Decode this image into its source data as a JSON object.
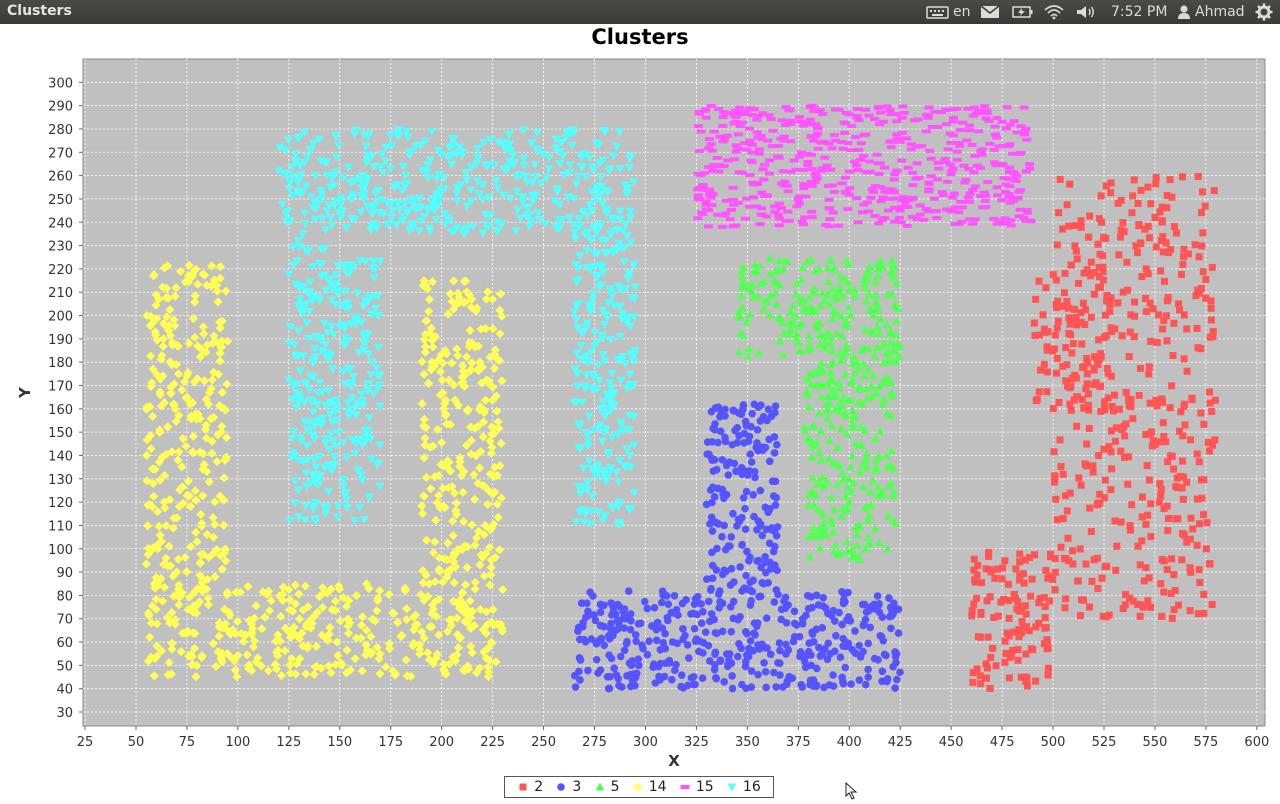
{
  "window": {
    "title": "Clusters"
  },
  "tray": {
    "language": "en",
    "time": "7:52 PM",
    "user": "Ahmad",
    "icons": [
      "keyboard-icon",
      "mail-icon",
      "battery-icon",
      "wifi-icon",
      "volume-icon",
      "user-icon",
      "gear-icon"
    ]
  },
  "chart_data": {
    "type": "scatter",
    "title": "Clusters",
    "xlabel": "X",
    "ylabel": "Y",
    "xlim": [
      24,
      604
    ],
    "ylim": [
      24,
      310
    ],
    "xticks": [
      25,
      50,
      75,
      100,
      125,
      150,
      175,
      200,
      225,
      250,
      275,
      300,
      325,
      350,
      375,
      400,
      425,
      450,
      475,
      500,
      525,
      550,
      575,
      600
    ],
    "yticks": [
      30,
      40,
      50,
      60,
      70,
      80,
      90,
      100,
      110,
      120,
      130,
      140,
      150,
      160,
      170,
      180,
      190,
      200,
      210,
      220,
      230,
      240,
      250,
      260,
      270,
      280,
      290,
      300
    ],
    "grid": true,
    "background": "#c0c0c0",
    "legend_position": "bottom",
    "series": [
      {
        "name": "2",
        "color": "#ff5555",
        "marker": "square",
        "regions": [
          {
            "x": [
              500,
              580
            ],
            "y": [
              70,
              260
            ],
            "n": 420
          },
          {
            "x": [
              460,
              500
            ],
            "y": [
              40,
              100
            ],
            "n": 120
          },
          {
            "x": [
              490,
              530
            ],
            "y": [
              160,
              220
            ],
            "n": 80
          }
        ]
      },
      {
        "name": "3",
        "color": "#5555ff",
        "marker": "circle",
        "regions": [
          {
            "x": [
              265,
              425
            ],
            "y": [
              40,
              82
            ],
            "n": 420
          },
          {
            "x": [
              330,
              365
            ],
            "y": [
              82,
              162
            ],
            "n": 180
          }
        ]
      },
      {
        "name": "5",
        "color": "#55ff55",
        "marker": "triangle-up",
        "regions": [
          {
            "x": [
              345,
              425
            ],
            "y": [
              180,
              225
            ],
            "n": 220
          },
          {
            "x": [
              378,
              423
            ],
            "y": [
              95,
              180
            ],
            "n": 220
          }
        ]
      },
      {
        "name": "14",
        "color": "#ffff55",
        "marker": "diamond",
        "regions": [
          {
            "x": [
              55,
              95
            ],
            "y": [
              45,
              222
            ],
            "n": 360
          },
          {
            "x": [
              95,
              230
            ],
            "y": [
              45,
              85
            ],
            "n": 280
          },
          {
            "x": [
              190,
              230
            ],
            "y": [
              85,
              215
            ],
            "n": 260
          }
        ]
      },
      {
        "name": "15",
        "color": "#ff55ff",
        "marker": "dash",
        "regions": [
          {
            "x": [
              325,
              490
            ],
            "y": [
              238,
              290
            ],
            "n": 560
          }
        ]
      },
      {
        "name": "16",
        "color": "#55ffff",
        "marker": "triangle-down",
        "regions": [
          {
            "x": [
              120,
              295
            ],
            "y": [
              235,
              280
            ],
            "n": 420
          },
          {
            "x": [
              125,
              148
            ],
            "y": [
              110,
              235
            ],
            "n": 170
          },
          {
            "x": [
              148,
              170
            ],
            "y": [
              110,
              225
            ],
            "n": 130
          },
          {
            "x": [
              265,
              295
            ],
            "y": [
              110,
              235
            ],
            "n": 220
          }
        ]
      }
    ]
  }
}
